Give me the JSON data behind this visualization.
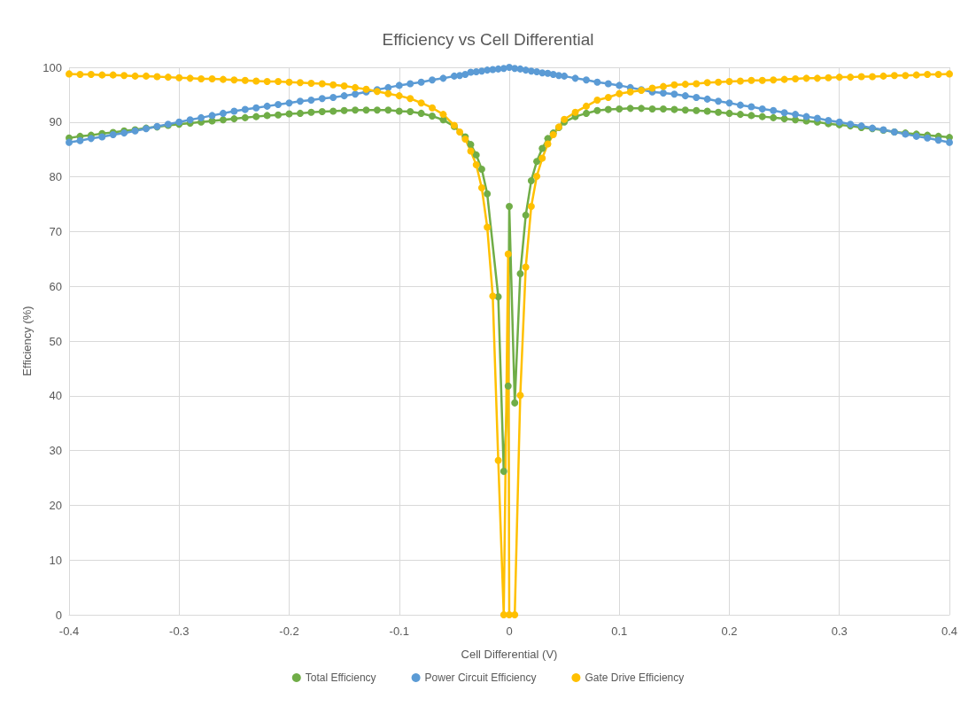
{
  "chart_data": {
    "type": "line",
    "title": "Efficiency vs Cell Differential",
    "xlabel": "Cell Differential (V)",
    "ylabel": "Efficiency (%)",
    "xlim": [
      -0.4,
      0.4
    ],
    "xticks": [
      -0.4,
      -0.3,
      -0.2,
      -0.1,
      0,
      0.1,
      0.2,
      0.3,
      0.4
    ],
    "ylim": [
      0,
      100
    ],
    "yticks": [
      0,
      10,
      20,
      30,
      40,
      50,
      60,
      70,
      80,
      90,
      100
    ],
    "grid": true,
    "legend": "bottom",
    "marker": "circle",
    "line_style": "solid",
    "series": [
      {
        "name": "Total Efficiency",
        "color": "#70ad47",
        "x": [
          -0.4,
          -0.39,
          -0.38,
          -0.37,
          -0.36,
          -0.35,
          -0.34,
          -0.33,
          -0.32,
          -0.31,
          -0.3,
          -0.29,
          -0.28,
          -0.27,
          -0.26,
          -0.25,
          -0.24,
          -0.23,
          -0.22,
          -0.21,
          -0.2,
          -0.19,
          -0.18,
          -0.17,
          -0.16,
          -0.15,
          -0.14,
          -0.13,
          -0.12,
          -0.11,
          -0.1,
          -0.09,
          -0.08,
          -0.07,
          -0.06,
          -0.05,
          -0.04,
          -0.035,
          -0.03,
          -0.025,
          -0.02,
          -0.01,
          -0.005,
          -0.001,
          0,
          0.005,
          0.01,
          0.015,
          0.02,
          0.025,
          0.03,
          0.035,
          0.04,
          0.045,
          0.05,
          0.06,
          0.07,
          0.08,
          0.09,
          0.1,
          0.11,
          0.12,
          0.13,
          0.14,
          0.15,
          0.16,
          0.17,
          0.18,
          0.19,
          0.2,
          0.21,
          0.22,
          0.23,
          0.24,
          0.25,
          0.26,
          0.27,
          0.28,
          0.29,
          0.3,
          0.31,
          0.32,
          0.33,
          0.34,
          0.35,
          0.36,
          0.37,
          0.38,
          0.39,
          0.4
        ],
        "values": [
          87.1,
          87.4,
          87.6,
          87.9,
          88.1,
          88.4,
          88.6,
          88.9,
          89.1,
          89.4,
          89.6,
          89.8,
          90.0,
          90.2,
          90.4,
          90.6,
          90.8,
          91.0,
          91.2,
          91.3,
          91.5,
          91.6,
          91.8,
          91.9,
          92.0,
          92.1,
          92.2,
          92.2,
          92.2,
          92.2,
          92.0,
          91.9,
          91.6,
          91.1,
          90.4,
          89.2,
          87.3,
          85.9,
          84.0,
          81.4,
          76.9,
          58.1,
          26.2,
          41.8,
          74.6,
          38.7,
          62.3,
          73.0,
          79.3,
          82.8,
          85.2,
          87.0,
          88.0,
          89.0,
          90.0,
          91.0,
          91.6,
          92.1,
          92.3,
          92.4,
          92.5,
          92.5,
          92.4,
          92.4,
          92.3,
          92.2,
          92.1,
          92.0,
          91.8,
          91.6,
          91.4,
          91.2,
          91.0,
          90.8,
          90.6,
          90.4,
          90.2,
          90.0,
          89.7,
          89.5,
          89.3,
          89.0,
          88.8,
          88.5,
          88.2,
          88.0,
          87.8,
          87.6,
          87.4,
          87.2
        ]
      },
      {
        "name": "Power Circuit Efficiency",
        "color": "#5b9bd5",
        "x": [
          -0.4,
          -0.39,
          -0.38,
          -0.37,
          -0.36,
          -0.35,
          -0.34,
          -0.33,
          -0.32,
          -0.31,
          -0.3,
          -0.29,
          -0.28,
          -0.27,
          -0.26,
          -0.25,
          -0.24,
          -0.23,
          -0.22,
          -0.21,
          -0.2,
          -0.19,
          -0.18,
          -0.17,
          -0.16,
          -0.15,
          -0.14,
          -0.13,
          -0.12,
          -0.11,
          -0.1,
          -0.09,
          -0.08,
          -0.07,
          -0.06,
          -0.05,
          -0.045,
          -0.04,
          -0.035,
          -0.03,
          -0.025,
          -0.02,
          -0.015,
          -0.01,
          -0.005,
          0,
          0.005,
          0.01,
          0.015,
          0.02,
          0.025,
          0.03,
          0.035,
          0.04,
          0.045,
          0.05,
          0.06,
          0.07,
          0.08,
          0.09,
          0.1,
          0.11,
          0.12,
          0.13,
          0.14,
          0.15,
          0.16,
          0.17,
          0.18,
          0.19,
          0.2,
          0.21,
          0.22,
          0.23,
          0.24,
          0.25,
          0.26,
          0.27,
          0.28,
          0.29,
          0.3,
          0.31,
          0.32,
          0.33,
          0.34,
          0.35,
          0.36,
          0.37,
          0.38,
          0.39,
          0.4
        ],
        "values": [
          86.3,
          86.6,
          87.0,
          87.3,
          87.7,
          88.0,
          88.4,
          88.8,
          89.2,
          89.6,
          90.0,
          90.4,
          90.8,
          91.2,
          91.6,
          92.0,
          92.3,
          92.6,
          92.9,
          93.2,
          93.5,
          93.8,
          94.0,
          94.3,
          94.5,
          94.8,
          95.1,
          95.5,
          95.9,
          96.3,
          96.7,
          97.0,
          97.3,
          97.7,
          98.0,
          98.4,
          98.5,
          98.7,
          99.1,
          99.2,
          99.3,
          99.5,
          99.6,
          99.7,
          99.8,
          100,
          99.8,
          99.7,
          99.5,
          99.3,
          99.2,
          99.0,
          98.9,
          98.7,
          98.5,
          98.4,
          98.0,
          97.7,
          97.3,
          97.0,
          96.7,
          96.3,
          95.9,
          95.5,
          95.3,
          95.1,
          94.8,
          94.5,
          94.2,
          93.8,
          93.5,
          93.1,
          92.8,
          92.4,
          92.1,
          91.7,
          91.4,
          91.0,
          90.7,
          90.3,
          90.0,
          89.6,
          89.3,
          88.9,
          88.6,
          88.2,
          87.8,
          87.4,
          87.1,
          86.7,
          86.3
        ]
      },
      {
        "name": "Gate Drive Efficiency",
        "color": "#ffc000",
        "x": [
          -0.4,
          -0.39,
          -0.38,
          -0.37,
          -0.36,
          -0.35,
          -0.34,
          -0.33,
          -0.32,
          -0.31,
          -0.3,
          -0.29,
          -0.28,
          -0.27,
          -0.26,
          -0.25,
          -0.24,
          -0.23,
          -0.22,
          -0.21,
          -0.2,
          -0.19,
          -0.18,
          -0.17,
          -0.16,
          -0.15,
          -0.14,
          -0.13,
          -0.12,
          -0.11,
          -0.1,
          -0.09,
          -0.08,
          -0.07,
          -0.06,
          -0.05,
          -0.045,
          -0.04,
          -0.035,
          -0.03,
          -0.025,
          -0.02,
          -0.015,
          -0.01,
          -0.005,
          -0.001,
          0,
          0.005,
          0.01,
          0.015,
          0.02,
          0.025,
          0.03,
          0.035,
          0.04,
          0.045,
          0.05,
          0.06,
          0.07,
          0.08,
          0.09,
          0.1,
          0.11,
          0.12,
          0.13,
          0.14,
          0.15,
          0.16,
          0.17,
          0.18,
          0.19,
          0.2,
          0.21,
          0.22,
          0.23,
          0.24,
          0.25,
          0.26,
          0.27,
          0.28,
          0.29,
          0.3,
          0.31,
          0.32,
          0.33,
          0.34,
          0.35,
          0.36,
          0.37,
          0.38,
          0.39,
          0.4
        ],
        "values": [
          98.8,
          98.7,
          98.7,
          98.6,
          98.6,
          98.5,
          98.4,
          98.4,
          98.3,
          98.2,
          98.1,
          98.0,
          97.9,
          97.9,
          97.8,
          97.7,
          97.6,
          97.5,
          97.4,
          97.4,
          97.3,
          97.2,
          97.1,
          97.0,
          96.8,
          96.6,
          96.3,
          96.0,
          95.6,
          95.2,
          94.8,
          94.3,
          93.5,
          92.6,
          91.4,
          89.4,
          88.2,
          86.9,
          84.7,
          82.2,
          78.0,
          70.8,
          58.2,
          28.2,
          0,
          65.9,
          0,
          0,
          40.1,
          63.5,
          74.6,
          80.1,
          83.4,
          86.0,
          87.7,
          89.1,
          90.5,
          91.8,
          92.9,
          94.0,
          94.5,
          95.2,
          95.5,
          95.8,
          96.2,
          96.5,
          96.8,
          96.9,
          97.0,
          97.2,
          97.3,
          97.4,
          97.5,
          97.6,
          97.6,
          97.7,
          97.8,
          97.9,
          98.0,
          98.0,
          98.1,
          98.2,
          98.2,
          98.3,
          98.3,
          98.4,
          98.5,
          98.5,
          98.6,
          98.7,
          98.7,
          98.8
        ]
      }
    ]
  }
}
